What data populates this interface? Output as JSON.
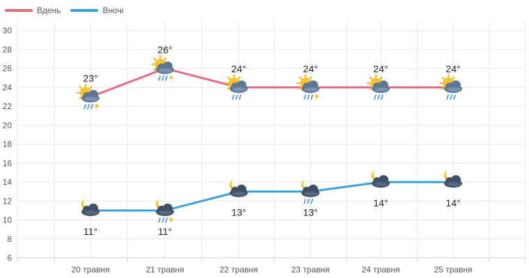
{
  "chart_data": {
    "type": "line",
    "categories": [
      "20 травня",
      "21 травня",
      "22 травня",
      "23 травня",
      "24 травня",
      "25 травня"
    ],
    "series": [
      {
        "name": "Вдень",
        "color": "#e36b81",
        "values": [
          23,
          26,
          24,
          24,
          24,
          24
        ],
        "labels": [
          "23°",
          "26°",
          "24°",
          "24°",
          "24°",
          "24°"
        ],
        "icons": [
          "sun-cloud-rain-lightning-icon",
          "sun-cloud-rain-lightning-icon",
          "sun-cloud-rain-icon",
          "sun-cloud-rain-lightning-icon",
          "sun-cloud-rain-icon",
          "sun-cloud-rain-icon"
        ]
      },
      {
        "name": "Вночі",
        "color": "#3b9fd8",
        "values": [
          11,
          11,
          13,
          13,
          14,
          14
        ],
        "labels": [
          "11°",
          "11°",
          "13°",
          "13°",
          "14°",
          "14°"
        ],
        "icons": [
          "moon-cloud-icon",
          "moon-cloud-rain-lightning-icon",
          "moon-cloud-icon",
          "moon-cloud-rain-icon",
          "moon-cloud-icon",
          "moon-cloud-icon"
        ]
      }
    ],
    "ylim": [
      6,
      30
    ],
    "yticks": [
      6,
      8,
      10,
      12,
      14,
      16,
      18,
      20,
      22,
      24,
      26,
      28,
      30
    ],
    "grid": true,
    "legend": "top-left"
  }
}
